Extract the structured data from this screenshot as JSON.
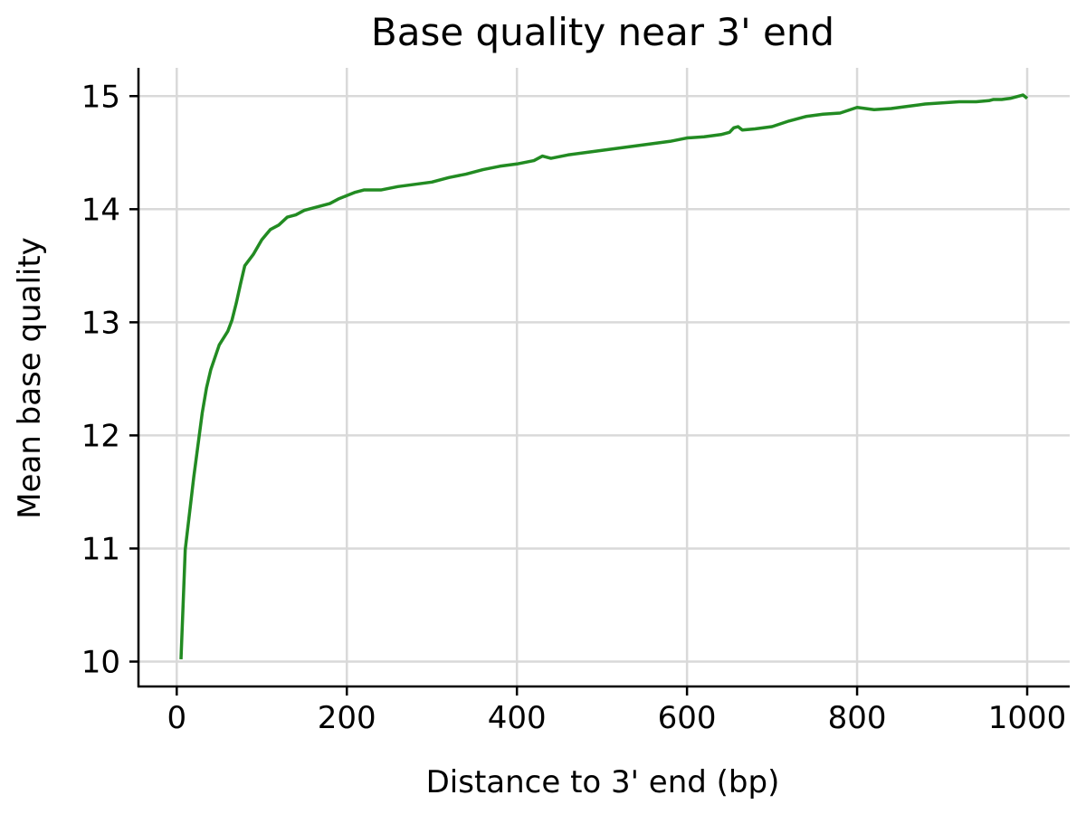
{
  "chart_data": {
    "type": "line",
    "title": "Base quality near 3' end",
    "xlabel": "Distance to 3' end (bp)",
    "ylabel": "Mean base quality",
    "xlim": [
      -45,
      1050
    ],
    "ylim": [
      9.78,
      15.25
    ],
    "xticks": [
      0,
      200,
      400,
      600,
      800,
      1000
    ],
    "yticks": [
      10,
      11,
      12,
      13,
      14,
      15
    ],
    "grid": true,
    "legend": "none",
    "line_color": "#228B22",
    "series": [
      {
        "x": [
          5,
          10,
          20,
          30,
          35,
          40,
          50,
          60,
          65,
          70,
          75,
          80,
          90,
          100,
          110,
          120,
          130,
          140,
          150,
          160,
          170,
          180,
          190,
          200,
          210,
          220,
          240,
          260,
          280,
          300,
          320,
          340,
          360,
          380,
          400,
          420,
          430,
          440,
          460,
          480,
          500,
          520,
          540,
          560,
          580,
          600,
          620,
          640,
          650,
          655,
          660,
          665,
          680,
          700,
          720,
          740,
          760,
          780,
          800,
          820,
          840,
          860,
          880,
          900,
          920,
          940,
          955,
          960,
          970,
          980,
          990,
          995,
          1000
        ],
        "values": [
          10.02,
          10.99,
          11.63,
          12.2,
          12.42,
          12.58,
          12.8,
          12.92,
          13.02,
          13.17,
          13.34,
          13.5,
          13.6,
          13.73,
          13.82,
          13.86,
          13.93,
          13.95,
          13.99,
          14.01,
          14.03,
          14.05,
          14.09,
          14.12,
          14.15,
          14.17,
          14.17,
          14.2,
          14.22,
          14.24,
          14.28,
          14.31,
          14.35,
          14.38,
          14.4,
          14.43,
          14.47,
          14.45,
          14.48,
          14.5,
          14.52,
          14.54,
          14.56,
          14.58,
          14.6,
          14.63,
          14.64,
          14.66,
          14.68,
          14.72,
          14.73,
          14.7,
          14.71,
          14.73,
          14.78,
          14.82,
          14.84,
          14.85,
          14.9,
          14.88,
          14.89,
          14.91,
          14.93,
          14.94,
          14.95,
          14.95,
          14.96,
          14.97,
          14.97,
          14.98,
          15.0,
          15.01,
          14.98
        ]
      }
    ]
  }
}
